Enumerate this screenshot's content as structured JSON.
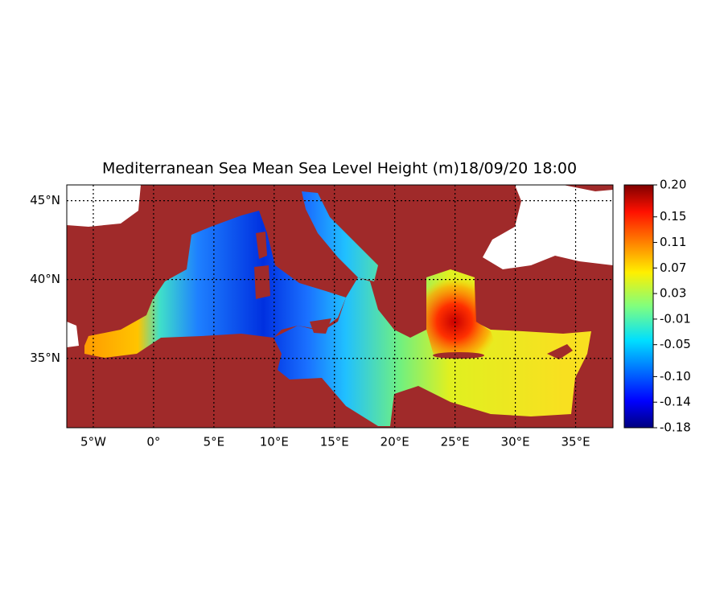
{
  "chart_data": {
    "type": "map",
    "title": "Mediterranean Sea Mean Sea Level Height (m)18/09/20 18:00",
    "xlim": [
      -7.2,
      38.1
    ],
    "ylim": [
      30.6,
      46.0
    ],
    "xticks": [
      {
        "value": -5,
        "label": "5°W"
      },
      {
        "value": 0,
        "label": "0°"
      },
      {
        "value": 5,
        "label": "5°E"
      },
      {
        "value": 10,
        "label": "10°E"
      },
      {
        "value": 15,
        "label": "15°E"
      },
      {
        "value": 20,
        "label": "20°E"
      },
      {
        "value": 25,
        "label": "25°E"
      },
      {
        "value": 30,
        "label": "30°E"
      },
      {
        "value": 35,
        "label": "35°E"
      }
    ],
    "yticks": [
      {
        "value": 35,
        "label": "35°N"
      },
      {
        "value": 40,
        "label": "40°N"
      },
      {
        "value": 45,
        "label": "45°N"
      }
    ],
    "grid": true,
    "colorbar": {
      "lim": [
        -0.18,
        0.2
      ],
      "ticks": [
        {
          "value": 0.2,
          "label": "0.20"
        },
        0.15,
        0.11,
        0.07,
        0.03,
        -0.01,
        -0.05,
        {
          "value": -0.1,
          "label": "-0.10"
        },
        -0.14,
        -0.18
      ]
    }
  }
}
